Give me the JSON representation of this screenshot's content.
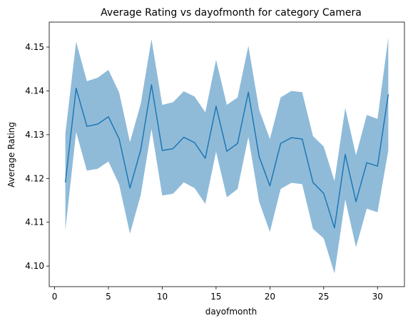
{
  "chart_data": {
    "type": "line",
    "title": "Average Rating vs dayofmonth for category Camera",
    "xlabel": "dayofmonth",
    "ylabel": "Average Rating",
    "xlim": [
      -0.5,
      32.5
    ],
    "ylim": [
      4.0953,
      4.1557
    ],
    "xticks": [
      0,
      5,
      10,
      15,
      20,
      25,
      30
    ],
    "yticks": [
      4.1,
      4.11,
      4.12,
      4.13,
      4.14,
      4.15
    ],
    "ytick_labels": [
      "4.10",
      "4.11",
      "4.12",
      "4.13",
      "4.14",
      "4.15"
    ],
    "grid": false,
    "legend": "none",
    "colors": {
      "line": "#1f77b4",
      "band": "#1f77b4"
    },
    "series": [
      {
        "x": [
          1,
          2,
          3,
          4,
          5,
          6,
          7,
          8,
          9,
          10,
          11,
          12,
          13,
          14,
          15,
          16,
          17,
          18,
          19,
          20,
          21,
          22,
          23,
          24,
          25,
          26,
          27,
          28,
          29,
          30,
          31
        ],
        "values": [
          4.1191,
          4.1406,
          4.1319,
          4.1324,
          4.1341,
          4.129,
          4.1178,
          4.1265,
          4.1414,
          4.1264,
          4.1268,
          4.1294,
          4.1282,
          4.1246,
          4.1365,
          4.1262,
          4.128,
          4.1397,
          4.125,
          4.1183,
          4.128,
          4.1293,
          4.129,
          4.1191,
          4.1166,
          4.1087,
          4.1255,
          4.1147,
          4.1236,
          4.1228,
          4.1392
        ],
        "lower": [
          4.1082,
          4.1306,
          4.1218,
          4.1222,
          4.1239,
          4.1186,
          4.1074,
          4.1162,
          4.1313,
          4.1161,
          4.1165,
          4.1191,
          4.1178,
          4.1142,
          4.1261,
          4.1157,
          4.1176,
          4.1295,
          4.1147,
          4.1078,
          4.1176,
          4.119,
          4.1187,
          4.1085,
          4.1063,
          4.0983,
          4.1152,
          4.1043,
          4.1131,
          4.1123,
          4.1264
        ],
        "upper": [
          4.1303,
          4.1512,
          4.1422,
          4.143,
          4.1448,
          4.1396,
          4.1283,
          4.137,
          4.1518,
          4.1368,
          4.1374,
          4.1399,
          4.1387,
          4.1351,
          4.1471,
          4.1368,
          4.1385,
          4.1503,
          4.1357,
          4.129,
          4.1385,
          4.14,
          4.1397,
          4.1297,
          4.1273,
          4.1194,
          4.1361,
          4.1253,
          4.1345,
          4.1336,
          4.1522
        ]
      }
    ]
  }
}
